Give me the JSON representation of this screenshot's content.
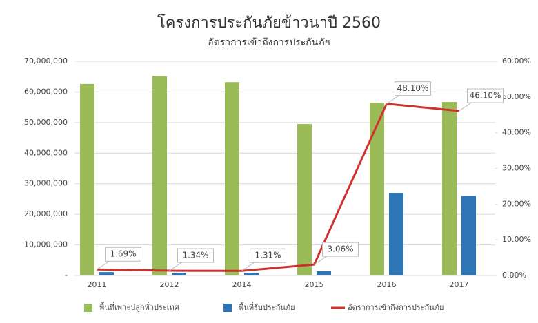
{
  "chart_data": {
    "type": "bar",
    "title": "โครงการประกันภัยข้าวนาปี 2560",
    "subtitle": "อัตราการเข้าถึงการประกันภัย",
    "categories": [
      "2011",
      "2012",
      "2014",
      "2015",
      "2016",
      "2017"
    ],
    "series": [
      {
        "name": "พื้นที่เพาะปลูกทั่วประเทศ",
        "type": "bar",
        "color": "#9bbb59",
        "values": [
          62600000,
          65200000,
          63200000,
          49500000,
          56500000,
          56700000
        ]
      },
      {
        "name": "พื้นที่รับประกันภัย",
        "type": "bar",
        "color": "#2e75b6",
        "values": [
          1100000,
          900000,
          900000,
          1400000,
          27000000,
          26000000
        ]
      },
      {
        "name": "อัตราการเข้าถึงการประกันภัย",
        "type": "line",
        "axis": "y2",
        "color": "#d0312d",
        "values": [
          1.69,
          1.34,
          1.31,
          3.06,
          48.1,
          46.1
        ],
        "value_labels": [
          "1.69%",
          "1.34%",
          "1.31%",
          "3.06%",
          "48.10%",
          "46.10%"
        ]
      }
    ],
    "ylim": [
      0,
      70000000
    ],
    "yticks": [
      {
        "value": 0,
        "label": "-"
      },
      {
        "value": 10000000,
        "label": "10,000,000"
      },
      {
        "value": 20000000,
        "label": "20,000,000"
      },
      {
        "value": 30000000,
        "label": "30,000,000"
      },
      {
        "value": 40000000,
        "label": "40,000,000"
      },
      {
        "value": 50000000,
        "label": "50,000,000"
      },
      {
        "value": 60000000,
        "label": "60,000,000"
      },
      {
        "value": 70000000,
        "label": "70,000,000"
      }
    ],
    "y2lim": [
      0,
      60
    ],
    "y2ticks": [
      {
        "value": 0,
        "label": "0.00%"
      },
      {
        "value": 10,
        "label": "10.00%"
      },
      {
        "value": 20,
        "label": "20.00%"
      },
      {
        "value": 30,
        "label": "30.00%"
      },
      {
        "value": 40,
        "label": "40.00%"
      },
      {
        "value": 50,
        "label": "50.00%"
      },
      {
        "value": 60,
        "label": "60.00%"
      }
    ],
    "grid": true,
    "legend": "bottom"
  }
}
